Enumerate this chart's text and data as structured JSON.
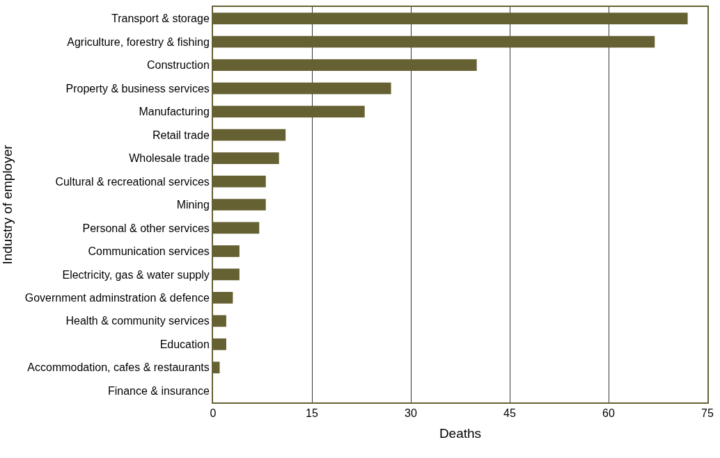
{
  "chart_data": {
    "type": "bar",
    "orientation": "horizontal",
    "xlabel": "Deaths",
    "ylabel": "Industry of employer",
    "categories": [
      "Transport & storage",
      "Agriculture, forestry & fishing",
      "Construction",
      "Property & business services",
      "Manufacturing",
      "Retail trade",
      "Wholesale trade",
      "Cultural & recreational services",
      "Mining",
      "Personal & other services",
      "Communication services",
      "Electricity, gas & water supply",
      "Government adminstration & defence",
      "Health & community services",
      "Education",
      "Accommodation, cafes & restaurants",
      "Finance & insurance"
    ],
    "values": [
      72,
      67,
      40,
      27,
      23,
      11,
      10,
      8,
      8,
      7,
      4,
      4,
      3,
      2,
      2,
      1,
      0
    ],
    "color": "#666133",
    "xlim": [
      0,
      75
    ],
    "xticks": [
      0,
      15,
      30,
      45,
      60,
      75
    ],
    "grid": "x"
  }
}
